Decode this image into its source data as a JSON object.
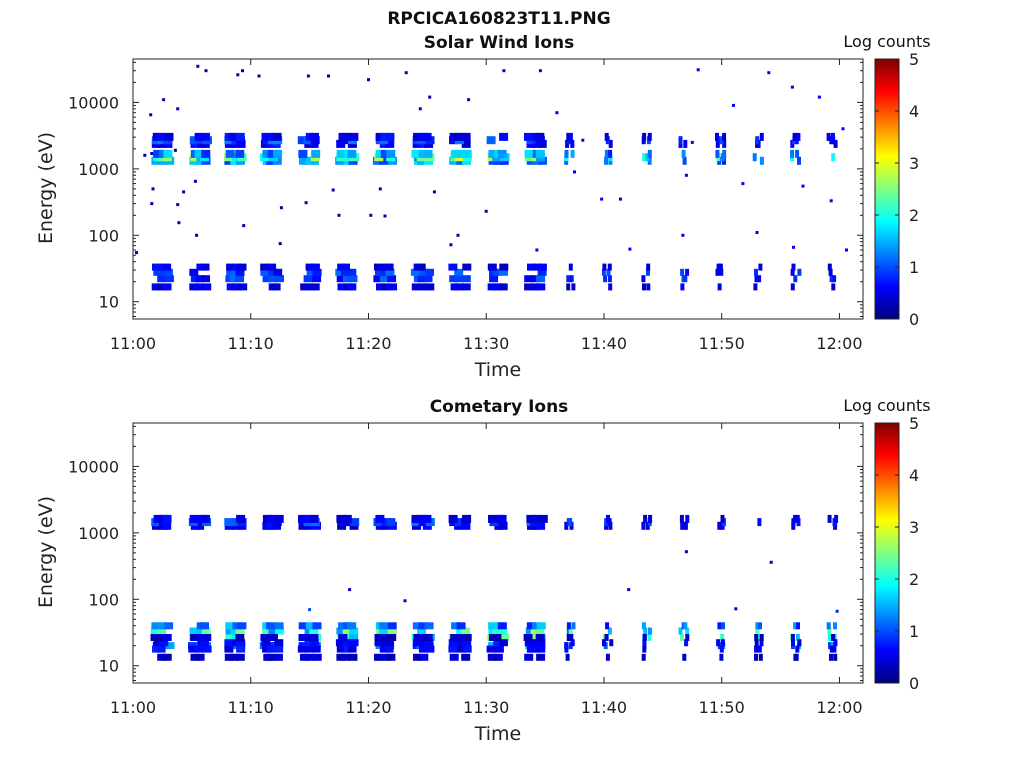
{
  "figure_title": "RPCICA160823T11.PNG",
  "colors": {
    "axis": "#222222",
    "background": "#ffffff"
  },
  "colormap": [
    "#00007f",
    "#0000ff",
    "#0080ff",
    "#00ffff",
    "#80ff80",
    "#ffff00",
    "#ff8000",
    "#ff0000",
    "#7f0000"
  ],
  "chart_data": [
    {
      "type": "heatmap",
      "title": "Solar Wind Ions",
      "xlabel": "Time",
      "ylabel": "Energy (eV)",
      "xticks": [
        "11:00",
        "11:10",
        "11:20",
        "11:30",
        "11:40",
        "11:50",
        "12:00"
      ],
      "yticks": [
        "10",
        "100",
        "1000",
        "10000"
      ],
      "ylog": true,
      "xlim_minutes": [
        0,
        62
      ],
      "ylim": [
        5.5,
        45000
      ],
      "colorbar": {
        "label": "Log counts",
        "ticks": [
          "0",
          "1",
          "2",
          "3",
          "4",
          "5"
        ],
        "range": [
          0,
          5
        ]
      },
      "pulse_times_minutes": [
        2.5,
        5.7,
        8.7,
        11.8,
        15.0,
        18.2,
        21.4,
        24.6,
        27.8,
        31.0,
        34.2,
        37.1,
        40.3,
        43.6,
        46.8,
        49.9,
        53.1,
        56.3,
        59.4
      ],
      "bands": [
        {
          "energy_ev": 1500,
          "peak_log_counts": 3.0
        },
        {
          "energy_ev": 2700,
          "peak_log_counts": 1.3
        },
        {
          "energy_ev": 25,
          "peak_log_counts": 1.2
        }
      ],
      "scatter_points": [
        {
          "t": 1.0,
          "e": 1600,
          "v": 0.2
        },
        {
          "t": 1.6,
          "e": 1700,
          "v": 0.2
        },
        {
          "t": 3.6,
          "e": 1900,
          "v": 0.2
        },
        {
          "t": 5.5,
          "e": 35000,
          "v": 0.2
        },
        {
          "t": 6.2,
          "e": 30000,
          "v": 0.2
        },
        {
          "t": 9.3,
          "e": 30000,
          "v": 0.2
        },
        {
          "t": 8.9,
          "e": 26000,
          "v": 0.2
        },
        {
          "t": 10.7,
          "e": 25000,
          "v": 0.2
        },
        {
          "t": 14.9,
          "e": 25000,
          "v": 0.2
        },
        {
          "t": 16.6,
          "e": 25000,
          "v": 0.2
        },
        {
          "t": 20.0,
          "e": 22000,
          "v": 0.2
        },
        {
          "t": 23.2,
          "e": 28000,
          "v": 0.2
        },
        {
          "t": 25.2,
          "e": 12000,
          "v": 0.2
        },
        {
          "t": 28.5,
          "e": 11000,
          "v": 0.2
        },
        {
          "t": 2.6,
          "e": 11000,
          "v": 0.2
        },
        {
          "t": 3.8,
          "e": 8000,
          "v": 0.2
        },
        {
          "t": 1.5,
          "e": 6500,
          "v": 0.2
        },
        {
          "t": 24.4,
          "e": 8000,
          "v": 0.2
        },
        {
          "t": 1.7,
          "e": 500,
          "v": 0.2
        },
        {
          "t": 4.3,
          "e": 450,
          "v": 0.2
        },
        {
          "t": 5.3,
          "e": 650,
          "v": 0.2
        },
        {
          "t": 17.0,
          "e": 480,
          "v": 0.2
        },
        {
          "t": 21.0,
          "e": 500,
          "v": 0.2
        },
        {
          "t": 25.6,
          "e": 450,
          "v": 0.2
        },
        {
          "t": 1.6,
          "e": 300,
          "v": 0.2
        },
        {
          "t": 3.8,
          "e": 290,
          "v": 0.2
        },
        {
          "t": 12.6,
          "e": 260,
          "v": 0.2
        },
        {
          "t": 14.7,
          "e": 310,
          "v": 0.2
        },
        {
          "t": 17.5,
          "e": 200,
          "v": 0.2
        },
        {
          "t": 20.2,
          "e": 200,
          "v": 0.2
        },
        {
          "t": 21.4,
          "e": 195,
          "v": 0.2
        },
        {
          "t": 3.9,
          "e": 155,
          "v": 0.2
        },
        {
          "t": 9.4,
          "e": 140,
          "v": 0.2
        },
        {
          "t": 5.4,
          "e": 100,
          "v": 0.2
        },
        {
          "t": 12.5,
          "e": 75,
          "v": 0.2
        },
        {
          "t": 27.6,
          "e": 100,
          "v": 0.2
        },
        {
          "t": 27.0,
          "e": 72,
          "v": 0.2
        },
        {
          "t": 0.3,
          "e": 55,
          "v": 0.2
        },
        {
          "t": 30.0,
          "e": 230,
          "v": 0.3
        },
        {
          "t": 31.5,
          "e": 30000,
          "v": 0.6
        },
        {
          "t": 34.6,
          "e": 30000,
          "v": 0.6
        },
        {
          "t": 36.0,
          "e": 7000,
          "v": 0.6
        },
        {
          "t": 37.5,
          "e": 900,
          "v": 0.6
        },
        {
          "t": 39.8,
          "e": 350,
          "v": 0.6
        },
        {
          "t": 41.4,
          "e": 350,
          "v": 0.6
        },
        {
          "t": 48.0,
          "e": 31000,
          "v": 0.6
        },
        {
          "t": 54.0,
          "e": 28000,
          "v": 0.6
        },
        {
          "t": 56.0,
          "e": 17000,
          "v": 0.6
        },
        {
          "t": 58.3,
          "e": 12000,
          "v": 0.6
        },
        {
          "t": 60.3,
          "e": 4000,
          "v": 0.6
        },
        {
          "t": 51.0,
          "e": 9000,
          "v": 0.6
        },
        {
          "t": 47.0,
          "e": 800,
          "v": 0.6
        },
        {
          "t": 51.8,
          "e": 600,
          "v": 0.6
        },
        {
          "t": 56.9,
          "e": 550,
          "v": 0.6
        },
        {
          "t": 59.3,
          "e": 330,
          "v": 0.6
        },
        {
          "t": 53.0,
          "e": 110,
          "v": 0.6
        },
        {
          "t": 46.7,
          "e": 100,
          "v": 0.6
        },
        {
          "t": 42.2,
          "e": 62,
          "v": 0.6
        },
        {
          "t": 60.6,
          "e": 60,
          "v": 0.6
        },
        {
          "t": 34.3,
          "e": 60,
          "v": 0.6
        },
        {
          "t": 56.1,
          "e": 66,
          "v": 0.6
        },
        {
          "t": 38.2,
          "e": 2700,
          "v": 0.6
        },
        {
          "t": 47.5,
          "e": 2500,
          "v": 0.6
        }
      ]
    },
    {
      "type": "heatmap",
      "title": "Cometary Ions",
      "xlabel": "Time",
      "ylabel": "Energy (eV)",
      "xticks": [
        "11:00",
        "11:10",
        "11:20",
        "11:30",
        "11:40",
        "11:50",
        "12:00"
      ],
      "yticks": [
        "10",
        "100",
        "1000",
        "10000"
      ],
      "ylog": true,
      "xlim_minutes": [
        0,
        62
      ],
      "ylim": [
        5.5,
        45000
      ],
      "colorbar": {
        "label": "Log counts",
        "ticks": [
          "0",
          "1",
          "2",
          "3",
          "4",
          "5"
        ],
        "range": [
          0,
          5
        ]
      },
      "pulse_times_minutes": [
        2.5,
        5.7,
        8.7,
        11.8,
        15.0,
        18.2,
        21.4,
        24.6,
        27.8,
        31.0,
        34.2,
        37.1,
        40.3,
        43.6,
        46.8,
        49.9,
        53.1,
        56.3,
        59.4
      ],
      "bands": [
        {
          "energy_ev": 1450,
          "peak_log_counts": 1.2
        },
        {
          "energy_ev": 30,
          "peak_log_counts": 2.8
        },
        {
          "energy_ev": 20,
          "peak_log_counts": 0.8
        }
      ],
      "scatter_points": [
        {
          "t": 15.0,
          "e": 70,
          "v": 1.0
        },
        {
          "t": 18.4,
          "e": 140,
          "v": 0.3
        },
        {
          "t": 23.1,
          "e": 95,
          "v": 0.3
        },
        {
          "t": 47.0,
          "e": 520,
          "v": 0.3
        },
        {
          "t": 54.2,
          "e": 360,
          "v": 0.3
        },
        {
          "t": 42.1,
          "e": 140,
          "v": 0.3
        },
        {
          "t": 51.2,
          "e": 72,
          "v": 0.3
        },
        {
          "t": 59.8,
          "e": 66,
          "v": 0.8
        }
      ]
    }
  ]
}
